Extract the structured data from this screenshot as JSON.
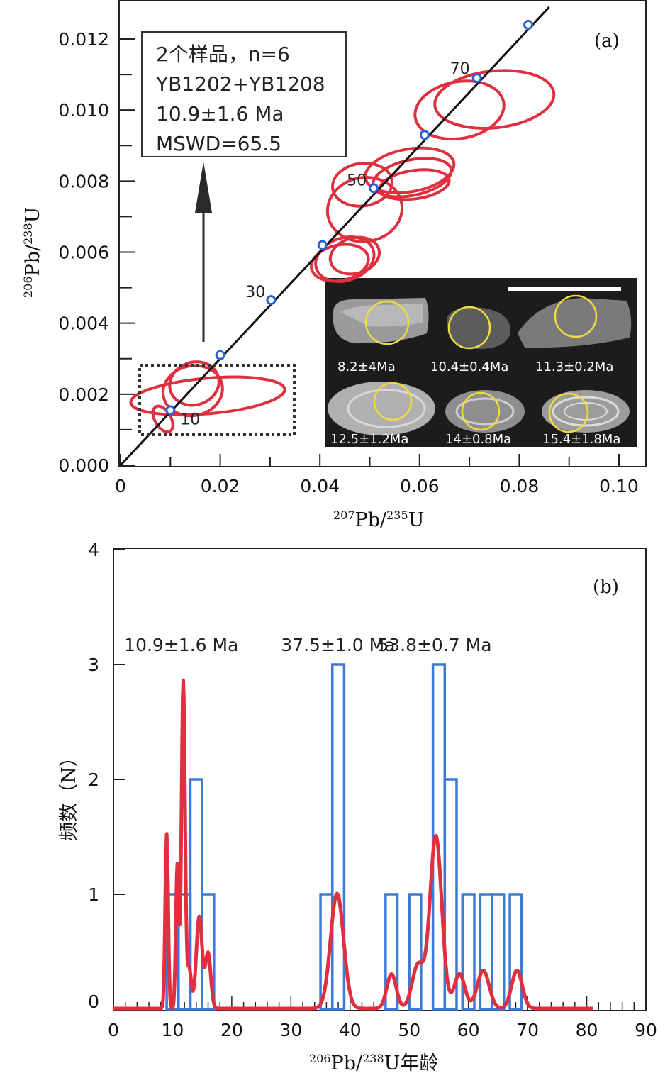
{
  "chart_data": [
    {
      "panel": "(a)",
      "type": "scatter",
      "subtype": "concordia diagram with error ellipses",
      "xlabel": {
        "sup": "207",
        "main": "Pb/",
        "sup2": "235",
        "end": "U"
      },
      "ylabel": {
        "sup": "206",
        "main": "Pb/",
        "sup2": "238",
        "end": "U"
      },
      "xlim": [
        0,
        0.1
      ],
      "ylim": [
        0,
        0.013
      ],
      "x_ticks": [
        "0",
        "0.02",
        "0.04",
        "0.06",
        "0.08",
        "0.10"
      ],
      "x_tick_values": [
        0,
        0.02,
        0.04,
        0.06,
        0.08,
        0.1
      ],
      "y_ticks": [
        "0.000",
        "0.002",
        "0.004",
        "0.006",
        "0.008",
        "0.010",
        "0.012"
      ],
      "y_tick_values": [
        0,
        0.002,
        0.004,
        0.006,
        0.008,
        0.01,
        0.012
      ],
      "concordia_line": {
        "x": [
          0,
          0.086
        ],
        "y": [
          0,
          0.0129
        ]
      },
      "concordia_ages": [
        {
          "age": "10",
          "x": 0.01,
          "y": 0.00155
        },
        {
          "age": "20",
          "x": 0.02,
          "y": 0.0031
        },
        {
          "age": "30",
          "x": 0.0302,
          "y": 0.00465
        },
        {
          "age": "40",
          "x": 0.0405,
          "y": 0.0062
        },
        {
          "age": "50",
          "x": 0.0508,
          "y": 0.0078
        },
        {
          "age": "60",
          "x": 0.061,
          "y": 0.0093
        },
        {
          "age": "70",
          "x": 0.0715,
          "y": 0.0109
        },
        {
          "age": "80",
          "x": 0.0818,
          "y": 0.0124
        }
      ],
      "concordia_labeled": [
        "10",
        "30",
        "50",
        "70"
      ],
      "ellipses": [
        {
          "cx": 0.0085,
          "cy": 0.0013,
          "rx": 0.0016,
          "ry": 0.0004,
          "angle": 30
        },
        {
          "cx": 0.0175,
          "cy": 0.00195,
          "rx": 0.0155,
          "ry": 0.0005,
          "angle": 5
        },
        {
          "cx": 0.0145,
          "cy": 0.0021,
          "rx": 0.006,
          "ry": 0.0007,
          "angle": 12
        },
        {
          "cx": 0.0148,
          "cy": 0.0023,
          "rx": 0.005,
          "ry": 0.0006,
          "angle": 18
        },
        {
          "cx": 0.045,
          "cy": 0.0058,
          "rx": 0.006,
          "ry": 0.0006,
          "angle": 18
        },
        {
          "cx": 0.044,
          "cy": 0.0057,
          "rx": 0.0058,
          "ry": 0.0005,
          "angle": 12
        },
        {
          "cx": 0.047,
          "cy": 0.0059,
          "rx": 0.005,
          "ry": 0.0005,
          "angle": 15
        },
        {
          "cx": 0.0485,
          "cy": 0.0079,
          "rx": 0.006,
          "ry": 0.0006,
          "angle": 8
        },
        {
          "cx": 0.049,
          "cy": 0.0072,
          "rx": 0.0075,
          "ry": 0.0009,
          "angle": 8
        },
        {
          "cx": 0.058,
          "cy": 0.0083,
          "rx": 0.009,
          "ry": 0.0006,
          "angle": 10
        },
        {
          "cx": 0.0585,
          "cy": 0.0081,
          "rx": 0.008,
          "ry": 0.0005,
          "angle": 12
        },
        {
          "cx": 0.059,
          "cy": 0.0079,
          "rx": 0.007,
          "ry": 0.0004,
          "angle": 8
        },
        {
          "cx": 0.068,
          "cy": 0.01,
          "rx": 0.009,
          "ry": 0.0008,
          "angle": 10
        },
        {
          "cx": 0.075,
          "cy": 0.0103,
          "rx": 0.012,
          "ry": 0.0008,
          "angle": 6
        }
      ],
      "info_box": {
        "lines": [
          "2个样品，n=6",
          "YB1202+YB1208",
          "10.9±1.6 Ma",
          "MSWD=65.5"
        ]
      },
      "inset": {
        "description_labels": [
          "8.2±4Ma",
          "10.4±0.4Ma",
          "11.3±0.2Ma",
          "12.5±1.2Ma",
          "14±0.8Ma",
          "15.4±1.8Ma"
        ]
      }
    },
    {
      "panel": "(b)",
      "type": "bar",
      "subtype": "histogram with probability density curve",
      "xlabel": {
        "sup": "206",
        "main": "Pb/",
        "sup2": "238",
        "end": "U年龄"
      },
      "ylabel": "频数（N）",
      "xlim": [
        0,
        90
      ],
      "ylim": [
        0,
        4
      ],
      "x_ticks": [
        "0",
        "10",
        "20",
        "30",
        "40",
        "50",
        "60",
        "70",
        "80",
        "90"
      ],
      "x_tick_values": [
        0,
        10,
        20,
        30,
        40,
        50,
        60,
        70,
        80,
        90
      ],
      "y_ticks": [
        "0",
        "1",
        "2",
        "3",
        "4"
      ],
      "y_tick_values": [
        0,
        1,
        2,
        3,
        4
      ],
      "bin_width": 2,
      "histogram": [
        {
          "start": 9,
          "count": 1
        },
        {
          "start": 11,
          "count": 1
        },
        {
          "start": 13,
          "count": 2
        },
        {
          "start": 15,
          "count": 1
        },
        {
          "start": 35,
          "count": 1
        },
        {
          "start": 37,
          "count": 3
        },
        {
          "start": 46,
          "count": 1
        },
        {
          "start": 50,
          "count": 1
        },
        {
          "start": 54,
          "count": 3
        },
        {
          "start": 56,
          "count": 2
        },
        {
          "start": 59,
          "count": 1
        },
        {
          "start": 62,
          "count": 1
        },
        {
          "start": 64,
          "count": 1
        },
        {
          "start": 67,
          "count": 1
        }
      ],
      "density_peaks": [
        {
          "age": 9.0,
          "height": 1.52,
          "sigma": 0.25
        },
        {
          "age": 10.8,
          "height": 1.25,
          "sigma": 0.25
        },
        {
          "age": 11.8,
          "height": 2.85,
          "sigma": 0.3
        },
        {
          "age": 12.8,
          "height": 0.35,
          "sigma": 0.35
        },
        {
          "age": 14.5,
          "height": 0.8,
          "sigma": 0.5
        },
        {
          "age": 16.0,
          "height": 0.48,
          "sigma": 0.45
        },
        {
          "age": 37.8,
          "height": 1.0,
          "sigma": 1.1
        },
        {
          "age": 47.0,
          "height": 0.3,
          "sigma": 0.8
        },
        {
          "age": 51.5,
          "height": 0.38,
          "sigma": 1.0
        },
        {
          "age": 54.5,
          "height": 1.5,
          "sigma": 1.0
        },
        {
          "age": 58.5,
          "height": 0.3,
          "sigma": 0.9
        },
        {
          "age": 62.5,
          "height": 0.33,
          "sigma": 1.0
        },
        {
          "age": 68.2,
          "height": 0.33,
          "sigma": 0.9
        }
      ],
      "peak_labels": [
        {
          "text": "10.9±1.6 Ma",
          "age": 11
        },
        {
          "text": "37.5±1.0 Ma",
          "age": 37.5
        },
        {
          "text": "53.8±0.7 Ma",
          "age": 53.8
        }
      ]
    }
  ],
  "colors": {
    "ellipse": "#e03040",
    "concordia": "#111111",
    "marker": "#2b5fd9",
    "histogram": "#3d7ad6",
    "density": "#e03040",
    "inset_circle": "#f0dc3c"
  }
}
